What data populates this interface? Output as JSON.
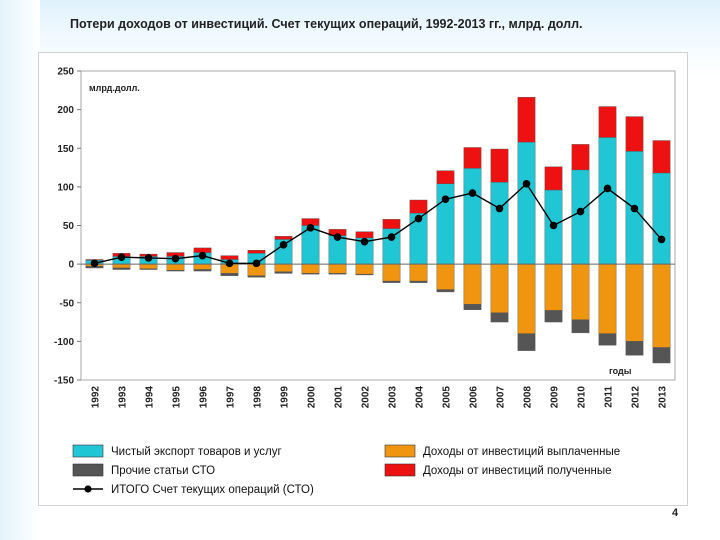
{
  "slide": {
    "title": "Потери доходов от инвестиций. Счет текущих операций, 1992-2013 гг., млрд. долл.",
    "page_number": "4"
  },
  "colors": {
    "exports": "#21c6d4",
    "inv_paid": "#f0950f",
    "other": "#555555",
    "inv_received": "#ee1111",
    "total": "#000000"
  },
  "chart_data": {
    "type": "bar",
    "stacked": true,
    "title": "Потери доходов от инвестиций. Счет текущих операций, 1992-2013 гг., млрд. долл.",
    "ylabel": "млрд.долл.",
    "xlabel": "годы",
    "ylim": [
      -150,
      250
    ],
    "yticks": [
      250,
      200,
      150,
      100,
      50,
      0,
      -50,
      -100,
      -150
    ],
    "grid": false,
    "legend_position": "bottom",
    "categories": [
      "1992",
      "1993",
      "1994",
      "1995",
      "1996",
      "1997",
      "1998",
      "1999",
      "2000",
      "2001",
      "2002",
      "2003",
      "2004",
      "2005",
      "2006",
      "2007",
      "2008",
      "2009",
      "2010",
      "2011",
      "2012",
      "2013"
    ],
    "series": [
      {
        "key": "exports",
        "name": "Чистый экспорт товаров и услуг",
        "kind": "bar",
        "values": [
          5,
          10,
          10,
          10,
          15,
          6,
          14,
          32,
          50,
          37,
          34,
          46,
          66,
          104,
          124,
          106,
          158,
          96,
          122,
          164,
          146,
          118
        ]
      },
      {
        "key": "inv_received",
        "name": "Доходы от инвестиций полученные",
        "kind": "bar",
        "values": [
          1,
          4,
          3,
          5,
          6,
          5,
          4,
          4,
          9,
          8,
          8,
          12,
          17,
          17,
          27,
          43,
          58,
          30,
          33,
          40,
          45,
          42
        ]
      },
      {
        "key": "inv_paid",
        "name": "Доходы от инвестиций выплаченные",
        "kind": "bar",
        "values": [
          -3,
          -5,
          -6,
          -8,
          -7,
          -12,
          -15,
          -10,
          -12,
          -12,
          -13,
          -22,
          -22,
          -33,
          -52,
          -63,
          -90,
          -60,
          -72,
          -90,
          -100,
          -108
        ]
      },
      {
        "key": "other",
        "name": "Прочие статьи СТО",
        "kind": "bar",
        "values": [
          -2,
          -2,
          -1,
          -1,
          -2,
          -3,
          -2,
          -2,
          -1,
          -1,
          -1,
          -2,
          -2,
          -3,
          -7,
          -12,
          -22,
          -15,
          -17,
          -15,
          -18,
          -20
        ]
      },
      {
        "key": "total",
        "name": "ИТОГО Счет текущих операций (СТО)",
        "kind": "line",
        "values": [
          1,
          9,
          8,
          7,
          11,
          1,
          1,
          25,
          47,
          35,
          29,
          35,
          59,
          84,
          92,
          72,
          104,
          50,
          68,
          98,
          72,
          32
        ]
      }
    ],
    "legend_order": [
      "exports",
      "inv_paid",
      "other",
      "inv_received",
      "total"
    ]
  }
}
